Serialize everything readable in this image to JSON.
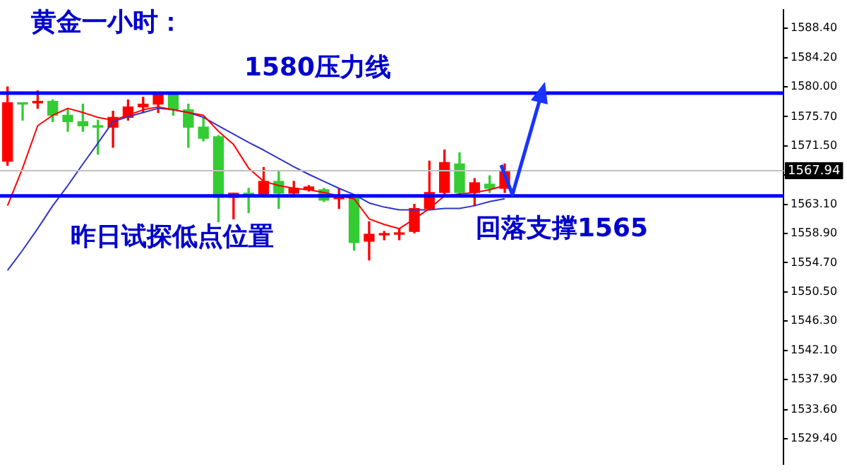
{
  "chart_data": {
    "type": "candlestick",
    "title": "黄金一小时：",
    "categories": [
      null,
      null,
      null,
      null,
      null,
      null,
      null,
      null,
      null,
      null,
      null,
      null,
      null,
      null,
      null,
      null,
      null,
      null,
      null,
      null,
      null,
      null,
      null,
      null,
      null,
      null,
      null,
      null,
      null,
      null,
      null,
      null,
      null,
      null,
      null,
      null,
      null,
      null,
      null,
      null,
      null,
      null,
      null,
      null,
      null,
      null,
      null,
      null,
      null,
      null,
      null,
      null
    ],
    "ohlc": [
      [
        1569.3,
        1580.0,
        1568.7,
        1577.7
      ],
      [
        1577.7,
        1577.7,
        1575.2,
        1577.5
      ],
      [
        1577.7,
        1579.4,
        1576.9,
        1577.9
      ],
      [
        1577.9,
        1578.1,
        1575.0,
        1575.9
      ],
      [
        1575.9,
        1576.9,
        1573.6,
        1575.0
      ],
      [
        1575.0,
        1577.5,
        1573.6,
        1574.4
      ],
      [
        1574.4,
        1575.2,
        1570.3,
        1574.2
      ],
      [
        1574.2,
        1576.5,
        1571.3,
        1575.6
      ],
      [
        1575.6,
        1578.1,
        1575.2,
        1577.1
      ],
      [
        1577.1,
        1578.5,
        1576.3,
        1577.5
      ],
      [
        1577.5,
        1579.1,
        1576.3,
        1578.9
      ],
      [
        1578.9,
        1579.1,
        1575.9,
        1576.7
      ],
      [
        1576.7,
        1577.5,
        1571.3,
        1574.2
      ],
      [
        1574.2,
        1575.6,
        1572.2,
        1572.6
      ],
      [
        1572.8,
        1573.0,
        1560.6,
        1564.1
      ],
      [
        1564.1,
        1564.7,
        1561.0,
        1564.7
      ],
      [
        1564.7,
        1565.4,
        1561.9,
        1564.5
      ],
      [
        1564.5,
        1568.4,
        1564.3,
        1566.4
      ],
      [
        1566.4,
        1567.8,
        1562.5,
        1564.7
      ],
      [
        1564.7,
        1566.4,
        1564.3,
        1565.4
      ],
      [
        1565.2,
        1565.8,
        1565.0,
        1565.6
      ],
      [
        1565.2,
        1565.4,
        1563.5,
        1563.7
      ],
      [
        1563.9,
        1565.4,
        1562.5,
        1564.3
      ],
      [
        1564.3,
        1564.5,
        1556.5,
        1557.6
      ],
      [
        1557.8,
        1560.6,
        1555.1,
        1558.8
      ],
      [
        1558.7,
        1559.2,
        1558.0,
        1558.8
      ],
      [
        1558.8,
        1559.6,
        1558.0,
        1559.0
      ],
      [
        1559.2,
        1563.1,
        1559.0,
        1562.5
      ],
      [
        1562.5,
        1569.3,
        1562.3,
        1564.8
      ],
      [
        1564.8,
        1570.9,
        1564.5,
        1569.1
      ],
      [
        1568.9,
        1570.5,
        1564.5,
        1564.8
      ],
      [
        1564.8,
        1566.8,
        1562.9,
        1566.2
      ],
      [
        1566.0,
        1567.2,
        1564.8,
        1565.4
      ],
      [
        1565.4,
        1568.9,
        1564.8,
        1567.9
      ],
      null,
      null,
      null,
      null,
      null,
      null,
      null,
      null,
      null,
      null,
      null,
      null,
      null,
      null,
      null,
      null,
      null,
      null
    ],
    "colors": [
      "#ff0000",
      "#33cc33",
      "#ff0000",
      "#33cc33",
      "#33cc33",
      "#33cc33",
      "#33cc33",
      "#ff0000",
      "#ff0000",
      "#ff0000",
      "#ff0000",
      "#33cc33",
      "#33cc33",
      "#33cc33",
      "#33cc33",
      "#ff0000",
      "#33cc33",
      "#ff0000",
      "#33cc33",
      "#ff0000",
      "#ff0000",
      "#33cc33",
      "#ff0000",
      "#33cc33",
      "#ff0000",
      "#ff0000",
      "#ff0000",
      "#ff0000",
      "#ff0000",
      "#ff0000",
      "#33cc33",
      "#ff0000",
      "#33cc33",
      "#ff0000",
      null,
      null,
      null,
      null,
      null,
      null,
      null,
      null,
      null,
      null,
      null,
      null,
      null,
      null,
      null,
      null,
      null,
      null
    ],
    "series": [
      {
        "type": "line",
        "color": "#ff0000",
        "values": [
          1562.9,
          1568.3,
          1574.4,
          1575.9,
          1576.9,
          1576.3,
          1575.6,
          1575.2,
          1575.9,
          1576.7,
          1577.1,
          1576.7,
          1576.3,
          1575.9,
          1573.6,
          1571.7,
          1568.3,
          1566.4,
          1565.8,
          1565.4,
          1565.2,
          1564.8,
          1564.3,
          1563.9,
          1561.0,
          1560.2,
          1559.6,
          1561.0,
          1562.5,
          1564.3,
          1564.6,
          1564.8,
          1565.2,
          1565.8,
          null,
          null,
          null,
          null,
          null,
          null,
          null,
          null,
          null,
          null,
          null,
          null,
          null,
          null,
          null,
          null,
          null,
          null
        ]
      },
      {
        "type": "line",
        "color": "#3333cc",
        "values": [
          1553.6,
          1556.5,
          1559.6,
          1562.9,
          1565.8,
          1568.9,
          1571.9,
          1575.0,
          1575.7,
          1576.3,
          1576.9,
          1576.7,
          1576.3,
          1575.6,
          1574.4,
          1573.2,
          1572.0,
          1570.9,
          1569.7,
          1568.5,
          1567.4,
          1566.4,
          1565.4,
          1564.5,
          1563.3,
          1562.7,
          1562.3,
          1562.3,
          1562.3,
          1562.5,
          1562.5,
          1562.9,
          1563.5,
          1563.9,
          null,
          null,
          null,
          null,
          null,
          null,
          null,
          null,
          null,
          null,
          null,
          null,
          null,
          null,
          null,
          null,
          null,
          null
        ]
      }
    ],
    "ylim": [
      1525.7,
      1591.1
    ],
    "yticks": [
      {
        "value": 1588.4,
        "label": "1588.40"
      },
      {
        "value": 1584.2,
        "label": "1584.20"
      },
      {
        "value": 1580,
        "label": "1580.00"
      },
      {
        "value": 1575.7,
        "label": "1575.70"
      },
      {
        "value": 1571.5,
        "label": "1571.50"
      },
      {
        "value": 1567.3,
        "label": null
      },
      {
        "value": 1563.1,
        "label": "1563.10"
      },
      {
        "value": 1558.9,
        "label": "1558.90"
      },
      {
        "value": 1554.7,
        "label": "1554.70"
      },
      {
        "value": 1550.5,
        "label": "1550.50"
      },
      {
        "value": 1546.3,
        "label": "1546.30"
      },
      {
        "value": 1542.1,
        "label": "1542.10"
      },
      {
        "value": 1537.9,
        "label": "1537.90"
      },
      {
        "value": 1533.6,
        "label": "1533.60"
      },
      {
        "value": 1529.4,
        "label": "1529.40"
      }
    ],
    "tick_labels": "y",
    "ref_lines": [
      {
        "axis": "y",
        "value": 1567.94,
        "label": "1567.94",
        "color": "#c0c0c0"
      },
      {
        "axis": "y",
        "value": 1579.1,
        "label": "1580压力线",
        "color": "#0000ff"
      },
      {
        "axis": "y",
        "value": 1564.3,
        "label": "回落支撑1565",
        "color": "#0000ff"
      }
    ],
    "annotations": [
      "昨日试探低点位置"
    ]
  }
}
